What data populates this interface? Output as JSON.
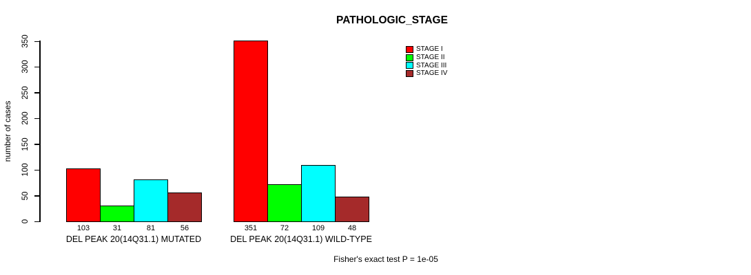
{
  "chart_data": {
    "type": "bar",
    "title": "PATHOLOGIC_STAGE",
    "xlabel": "",
    "ylabel": "number of cases",
    "ylim": [
      0,
      350
    ],
    "ytick_step": 50,
    "grid": false,
    "legend_position": "upper-right",
    "bar_value_labels": true,
    "categories": [
      "DEL PEAK 20(14Q31.1) MUTATED",
      "DEL PEAK 20(14Q31.1) WILD-TYPE"
    ],
    "series": [
      {
        "name": "STAGE I",
        "color": "#ff0000",
        "values": [
          103,
          351
        ]
      },
      {
        "name": "STAGE II",
        "color": "#00ff00",
        "values": [
          31,
          72
        ]
      },
      {
        "name": "STAGE III",
        "color": "#00ffff",
        "values": [
          81,
          109
        ]
      },
      {
        "name": "STAGE IV",
        "color": "#a52a2a",
        "values": [
          56,
          48
        ]
      }
    ],
    "annotation": "Fisher's exact test P = 1e-05"
  },
  "colors": {
    "background": "#ffffff",
    "axis": "#000000",
    "text": "#000000"
  }
}
